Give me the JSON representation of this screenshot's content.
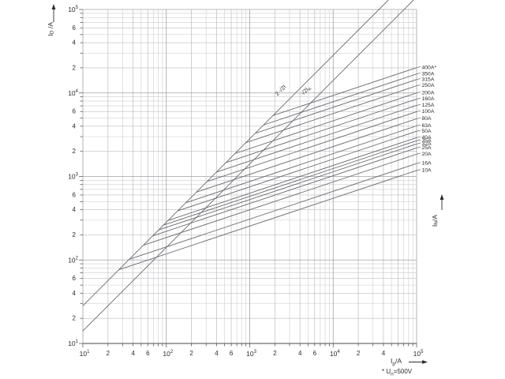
{
  "chart_data": {
    "type": "line",
    "scale": "log-log",
    "x_axis": {
      "caption": {
        "main": "I",
        "sub": "p",
        "rest": "/A"
      },
      "min": 10,
      "max": 100000,
      "decade_exponents": [
        1,
        2,
        3,
        4,
        5
      ],
      "labeled_minors": [
        2,
        4,
        6
      ],
      "final_decade_labeled_minors": [
        2,
        4
      ]
    },
    "y_axis": {
      "caption": {
        "main": "I",
        "sub": "D",
        "rest": " /A"
      },
      "min": 10,
      "max": 100000,
      "decade_exponents": [
        1,
        2,
        3,
        4,
        5
      ],
      "labeled_minors": [
        2,
        4,
        6
      ]
    },
    "right_axis": {
      "caption": {
        "main": "I",
        "sub": "N",
        "rest": "/A"
      }
    },
    "footnote": {
      "star": "*",
      "u": "U",
      "sub": "n",
      "rest": "=500V"
    },
    "reference_lines": [
      {
        "label_parts": [
          {
            "t": "2·√2I"
          }
        ],
        "factor": 2.828
      },
      {
        "label_parts": [
          {
            "t": "√2I"
          },
          {
            "t": "K",
            "sub": true
          }
        ],
        "factor": 1.414
      }
    ],
    "curve_slope_log": 0.333,
    "curves": [
      {
        "label": "400A*",
        "i_n": 400,
        "i_d_at_100kA": 20100
      },
      {
        "label": "350A",
        "i_n": 350,
        "i_d_at_100kA": 16900
      },
      {
        "label": "315A",
        "i_n": 315,
        "i_d_at_100kA": 14500
      },
      {
        "label": "250A",
        "i_n": 250,
        "i_d_at_100kA": 12200
      },
      {
        "label": "200A",
        "i_n": 200,
        "i_d_at_100kA": 10000
      },
      {
        "label": "160A",
        "i_n": 160,
        "i_d_at_100kA": 8450
      },
      {
        "label": "125A",
        "i_n": 125,
        "i_d_at_100kA": 7100
      },
      {
        "label": "100A",
        "i_n": 100,
        "i_d_at_100kA": 5970
      },
      {
        "label": "80A",
        "i_n": 80,
        "i_d_at_100kA": 4910
      },
      {
        "label": "63A",
        "i_n": 63,
        "i_d_at_100kA": 4040
      },
      {
        "label": "50A",
        "i_n": 50,
        "i_d_at_100kA": 3480
      },
      {
        "label": "40A",
        "i_n": 40,
        "i_d_at_100kA": 2920
      },
      {
        "label": "35A",
        "i_n": 35,
        "i_d_at_100kA": 2680
      },
      {
        "label": "32A",
        "i_n": 32,
        "i_d_at_100kA": 2450
      },
      {
        "label": "25A",
        "i_n": 25,
        "i_d_at_100kA": 2200
      },
      {
        "label": "20A",
        "i_n": 20,
        "i_d_at_100kA": 1850
      },
      {
        "label": "16A",
        "i_n": 16,
        "i_d_at_100kA": 1430
      },
      {
        "label": "10A",
        "i_n": 10,
        "i_d_at_100kA": 1180
      }
    ],
    "colors": {
      "grid_minor": "#d4d4d8",
      "grid_labeled_minor": "#bebec2",
      "grid_major": "#a2a2a6",
      "axis": "#4a4a4e",
      "curve": "#6a6a6e",
      "text": "#2b2b2e"
    }
  }
}
